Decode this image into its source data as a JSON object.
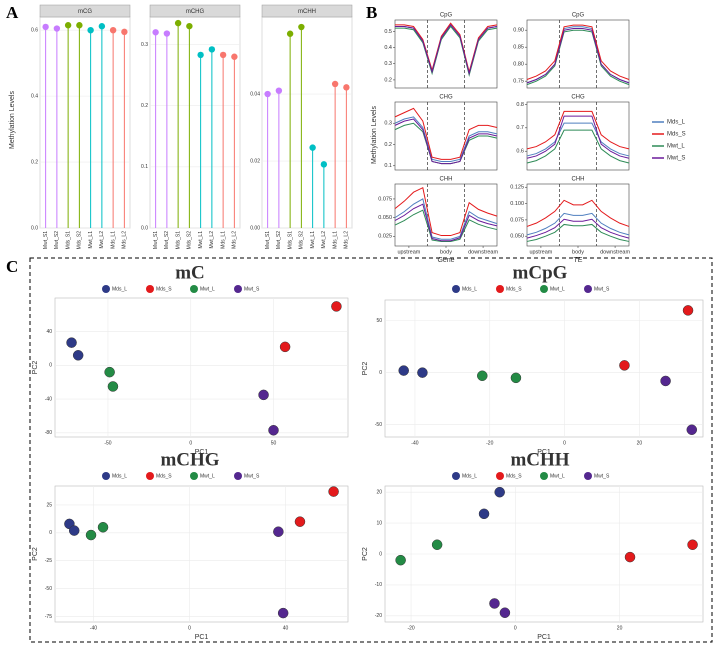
{
  "panel_labels": [
    "A",
    "B",
    "C"
  ],
  "chart_data": [
    {
      "type": "lollipop",
      "ylabel": "Methylation Levels",
      "categories": [
        "Mwt_S1",
        "Mwt_S2",
        "Mds_S1",
        "Mds_S2",
        "Mwt_L1",
        "Mwt_L2",
        "Mds_L1",
        "Mds_L2"
      ],
      "colors": [
        "#c77cff",
        "#c77cff",
        "#7cae00",
        "#7cae00",
        "#00bfc4",
        "#00bfc4",
        "#f8766d",
        "#f8766d"
      ],
      "facets": [
        {
          "title": "mCG",
          "ylim": [
            0,
            0.64
          ],
          "yticks": [
            {
              "value": 0,
              "label": "0.0"
            },
            0.2,
            0.4,
            0.6
          ],
          "values": [
            0.61,
            0.605,
            0.615,
            0.615,
            0.6,
            0.612,
            0.6,
            0.595
          ]
        },
        {
          "title": "mCHG",
          "ylim": [
            0,
            0.345
          ],
          "yticks": [
            {
              "value": 0,
              "label": "0.0"
            },
            0.1,
            0.2,
            0.3
          ],
          "values": [
            0.32,
            0.318,
            0.335,
            0.33,
            0.283,
            0.292,
            0.283,
            0.28
          ]
        },
        {
          "title": "mCHH",
          "ylim": [
            0,
            0.063
          ],
          "yticks": [
            {
              "value": 0,
              "label": "0.00"
            },
            0.02,
            0.04
          ],
          "values": [
            0.04,
            0.041,
            0.058,
            0.06,
            0.024,
            0.019,
            0.043,
            0.042
          ]
        }
      ]
    },
    {
      "type": "line",
      "ylabel": "Methylation Levels",
      "legend": "right",
      "x": [
        0,
        1,
        2,
        3,
        4,
        5,
        6,
        7,
        8,
        9,
        10,
        11
      ],
      "xlim": [
        0,
        11
      ],
      "vlines": [
        3.5,
        7.5
      ],
      "xticks": [
        {
          "value": 1.5,
          "label": "upstream"
        },
        {
          "value": 5.5,
          "label": "body"
        },
        {
          "value": 9.5,
          "label": "downstream"
        }
      ],
      "series": [
        {
          "name": "Mds_L",
          "color": "#4f7fbf"
        },
        {
          "name": "Mds_S",
          "color": "#e41a1c"
        },
        {
          "name": "Mwt_L",
          "color": "#2e8b57"
        },
        {
          "name": "Mwt_S",
          "color": "#6a1b9a"
        }
      ],
      "facets": [
        {
          "title": "CpG",
          "ylim": [
            0.15,
            0.57
          ],
          "yticks": [
            0.2,
            0.3,
            0.4,
            0.5
          ],
          "values": [
            [
              0.53,
              0.53,
              0.52,
              0.44,
              0.25,
              0.46,
              0.54,
              0.47,
              0.24,
              0.45,
              0.52,
              0.53
            ],
            [
              0.54,
              0.54,
              0.53,
              0.45,
              0.26,
              0.47,
              0.55,
              0.48,
              0.25,
              0.46,
              0.53,
              0.54
            ],
            [
              0.52,
              0.52,
              0.51,
              0.43,
              0.24,
              0.45,
              0.53,
              0.46,
              0.23,
              0.44,
              0.51,
              0.52
            ],
            [
              0.53,
              0.53,
              0.52,
              0.44,
              0.25,
              0.46,
              0.54,
              0.47,
              0.24,
              0.45,
              0.52,
              0.53
            ]
          ]
        },
        {
          "title": "CHG",
          "ylim": [
            0.08,
            0.4
          ],
          "yticks": [
            0.1,
            0.2,
            0.3
          ],
          "values": [
            [
              0.3,
              0.32,
              0.33,
              0.28,
              0.13,
              0.12,
              0.12,
              0.13,
              0.24,
              0.26,
              0.26,
              0.25
            ],
            [
              0.33,
              0.35,
              0.37,
              0.31,
              0.14,
              0.13,
              0.13,
              0.14,
              0.27,
              0.29,
              0.29,
              0.28
            ],
            [
              0.27,
              0.29,
              0.3,
              0.26,
              0.12,
              0.11,
              0.11,
              0.12,
              0.22,
              0.24,
              0.24,
              0.23
            ],
            [
              0.29,
              0.31,
              0.32,
              0.27,
              0.12,
              0.11,
              0.11,
              0.12,
              0.23,
              0.25,
              0.25,
              0.24
            ]
          ]
        },
        {
          "title": "CHH",
          "xlabel": "Gene",
          "ylim": [
            0.012,
            0.095
          ],
          "yticks": [
            0.025,
            {
              "value": 0.05,
              "label": "0.050"
            },
            0.075
          ],
          "values": [
            [
              0.05,
              0.058,
              0.068,
              0.075,
              0.024,
              0.021,
              0.021,
              0.025,
              0.058,
              0.05,
              0.046,
              0.042
            ],
            [
              0.062,
              0.072,
              0.084,
              0.09,
              0.03,
              0.026,
              0.026,
              0.03,
              0.07,
              0.061,
              0.056,
              0.052
            ],
            [
              0.04,
              0.046,
              0.054,
              0.06,
              0.02,
              0.018,
              0.018,
              0.021,
              0.047,
              0.041,
              0.037,
              0.034
            ],
            [
              0.046,
              0.053,
              0.062,
              0.068,
              0.022,
              0.019,
              0.019,
              0.023,
              0.053,
              0.046,
              0.042,
              0.039
            ]
          ]
        },
        {
          "title": "CpG",
          "ylim": [
            0.73,
            0.93
          ],
          "yticks": [
            0.75,
            {
              "value": 0.8,
              "label": "0.80"
            },
            0.85,
            {
              "value": 0.9,
              "label": "0.90"
            }
          ],
          "values": [
            [
              0.745,
              0.755,
              0.77,
              0.8,
              0.905,
              0.91,
              0.91,
              0.905,
              0.8,
              0.77,
              0.755,
              0.745
            ],
            [
              0.755,
              0.765,
              0.78,
              0.81,
              0.91,
              0.915,
              0.915,
              0.91,
              0.81,
              0.78,
              0.765,
              0.755
            ],
            [
              0.74,
              0.75,
              0.765,
              0.795,
              0.895,
              0.9,
              0.9,
              0.895,
              0.795,
              0.765,
              0.75,
              0.74
            ],
            [
              0.745,
              0.755,
              0.77,
              0.8,
              0.9,
              0.905,
              0.905,
              0.9,
              0.8,
              0.77,
              0.755,
              0.745
            ]
          ]
        },
        {
          "title": "CHG",
          "ylim": [
            0.52,
            0.81
          ],
          "yticks": [
            0.6,
            0.7,
            0.8
          ],
          "values": [
            [
              0.58,
              0.59,
              0.61,
              0.64,
              0.72,
              0.72,
              0.72,
              0.72,
              0.64,
              0.61,
              0.59,
              0.58
            ],
            [
              0.61,
              0.62,
              0.64,
              0.67,
              0.77,
              0.77,
              0.77,
              0.77,
              0.67,
              0.64,
              0.62,
              0.61
            ],
            [
              0.55,
              0.56,
              0.58,
              0.61,
              0.69,
              0.69,
              0.69,
              0.69,
              0.61,
              0.58,
              0.56,
              0.55
            ],
            [
              0.57,
              0.58,
              0.6,
              0.63,
              0.75,
              0.75,
              0.75,
              0.75,
              0.63,
              0.6,
              0.58,
              0.57
            ]
          ]
        },
        {
          "title": "CHH",
          "xlabel": "TE",
          "ylim": [
            0.035,
            0.13
          ],
          "yticks": [
            {
              "value": 0.05,
              "label": "0.050"
            },
            0.075,
            {
              "value": 0.1,
              "label": "0.100"
            },
            0.125
          ],
          "values": [
            [
              0.052,
              0.056,
              0.062,
              0.07,
              0.085,
              0.082,
              0.082,
              0.085,
              0.07,
              0.062,
              0.056,
              0.052
            ],
            [
              0.065,
              0.07,
              0.078,
              0.088,
              0.105,
              0.098,
              0.098,
              0.105,
              0.088,
              0.078,
              0.07,
              0.065
            ],
            [
              0.042,
              0.045,
              0.05,
              0.056,
              0.068,
              0.066,
              0.066,
              0.068,
              0.056,
              0.05,
              0.045,
              0.042
            ],
            [
              0.047,
              0.051,
              0.056,
              0.063,
              0.076,
              0.073,
              0.073,
              0.076,
              0.063,
              0.056,
              0.051,
              0.047
            ]
          ]
        }
      ]
    },
    {
      "type": "scatter",
      "title": "mC",
      "xlabel": "PC1",
      "ylabel": "PC2",
      "grid": true,
      "xlim": [
        -82,
        95
      ],
      "ylim": [
        -85,
        80
      ],
      "xticks": [
        -50,
        0,
        50
      ],
      "yticks": [
        -80,
        -40,
        0,
        40
      ],
      "series": [
        {
          "name": "Mds_L",
          "color": "#2e3a87",
          "x": [
            -72,
            -68
          ],
          "y": [
            27,
            12
          ]
        },
        {
          "name": "Mds_S",
          "color": "#e31a1c",
          "x": [
            57,
            88
          ],
          "y": [
            22,
            70
          ]
        },
        {
          "name": "Mwt_L",
          "color": "#238b45",
          "x": [
            -49,
            -47
          ],
          "y": [
            -8,
            -25
          ]
        },
        {
          "name": "Mwt_S",
          "color": "#54278f",
          "x": [
            44,
            50
          ],
          "y": [
            -35,
            -77
          ]
        }
      ]
    },
    {
      "type": "scatter",
      "title": "mCpG",
      "xlabel": "PC1",
      "ylabel": "PC2",
      "grid": true,
      "xlim": [
        -48,
        37
      ],
      "ylim": [
        -62,
        70
      ],
      "xticks": [
        -40,
        -20,
        0,
        20
      ],
      "yticks": [
        -50,
        0,
        50
      ],
      "series": [
        {
          "name": "Mds_L",
          "color": "#2e3a87",
          "x": [
            -43,
            -38
          ],
          "y": [
            2,
            0
          ]
        },
        {
          "name": "Mds_S",
          "color": "#e31a1c",
          "x": [
            16,
            33
          ],
          "y": [
            7,
            60
          ]
        },
        {
          "name": "Mwt_L",
          "color": "#238b45",
          "x": [
            -22,
            -13
          ],
          "y": [
            -3,
            -5
          ]
        },
        {
          "name": "Mwt_S",
          "color": "#54278f",
          "x": [
            27,
            34
          ],
          "y": [
            -8,
            -55
          ]
        }
      ]
    },
    {
      "type": "scatter",
      "title": "mCHG",
      "xlabel": "PC1",
      "ylabel": "PC2",
      "grid": true,
      "xlim": [
        -56,
        66
      ],
      "ylim": [
        -80,
        42
      ],
      "xticks": [
        -40,
        0,
        40
      ],
      "yticks": [
        -75,
        -50,
        -25,
        0,
        25
      ],
      "series": [
        {
          "name": "Mds_L",
          "color": "#2e3a87",
          "x": [
            -50,
            -48
          ],
          "y": [
            8,
            2
          ]
        },
        {
          "name": "Mds_S",
          "color": "#e31a1c",
          "x": [
            46,
            60
          ],
          "y": [
            10,
            37
          ]
        },
        {
          "name": "Mwt_L",
          "color": "#238b45",
          "x": [
            -41,
            -36
          ],
          "y": [
            -2,
            5
          ]
        },
        {
          "name": "Mwt_S",
          "color": "#54278f",
          "x": [
            37,
            39
          ],
          "y": [
            1,
            -72
          ]
        }
      ]
    },
    {
      "type": "scatter",
      "title": "mCHH",
      "xlabel": "PC1",
      "ylabel": "PC2",
      "grid": true,
      "xlim": [
        -25,
        36
      ],
      "ylim": [
        -22,
        22
      ],
      "xticks": [
        -20,
        0,
        20
      ],
      "yticks": [
        -20,
        -10,
        0,
        10,
        20
      ],
      "series": [
        {
          "name": "Mds_L",
          "color": "#2e3a87",
          "x": [
            -6,
            -3
          ],
          "y": [
            13,
            20
          ]
        },
        {
          "name": "Mds_S",
          "color": "#e31a1c",
          "x": [
            22,
            34
          ],
          "y": [
            -1,
            3
          ]
        },
        {
          "name": "Mwt_L",
          "color": "#238b45",
          "x": [
            -22,
            -15
          ],
          "y": [
            -2,
            3
          ]
        },
        {
          "name": "Mwt_S",
          "color": "#54278f",
          "x": [
            -4,
            -2
          ],
          "y": [
            -16,
            -19
          ]
        }
      ]
    }
  ]
}
